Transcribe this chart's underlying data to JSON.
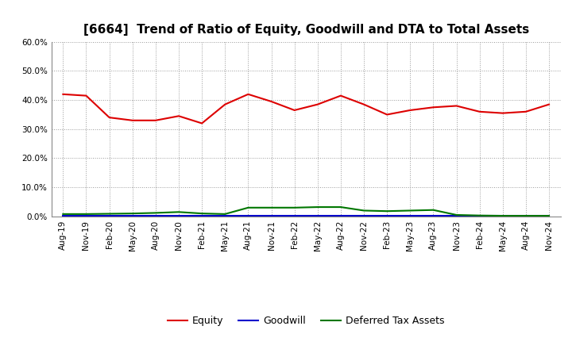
{
  "title": "[6664]  Trend of Ratio of Equity, Goodwill and DTA to Total Assets",
  "x_labels": [
    "Aug-19",
    "Nov-19",
    "Feb-20",
    "May-20",
    "Aug-20",
    "Nov-20",
    "Feb-21",
    "May-21",
    "Aug-21",
    "Nov-21",
    "Feb-22",
    "May-22",
    "Aug-22",
    "Nov-22",
    "Feb-23",
    "May-23",
    "Aug-23",
    "Nov-23",
    "Feb-24",
    "May-24",
    "Aug-24",
    "Nov-24"
  ],
  "equity": [
    42.0,
    41.5,
    34.0,
    33.0,
    33.0,
    34.5,
    32.0,
    38.5,
    42.0,
    39.5,
    36.5,
    38.5,
    41.5,
    38.5,
    35.0,
    36.5,
    37.5,
    38.0,
    36.0,
    35.5,
    36.0,
    38.5
  ],
  "goodwill": [
    0.3,
    0.3,
    0.3,
    0.3,
    0.3,
    0.3,
    0.3,
    0.3,
    0.3,
    0.3,
    0.3,
    0.3,
    0.3,
    0.3,
    0.3,
    0.3,
    0.3,
    0.3,
    0.3,
    0.3,
    0.3,
    0.3
  ],
  "dta": [
    0.8,
    0.8,
    0.9,
    1.0,
    1.2,
    1.5,
    1.0,
    0.8,
    3.0,
    3.0,
    3.0,
    3.2,
    3.2,
    2.0,
    1.8,
    2.0,
    2.2,
    0.5,
    0.3,
    0.2,
    0.2,
    0.2
  ],
  "equity_color": "#dd0000",
  "goodwill_color": "#0000cc",
  "dta_color": "#007700",
  "ylim": [
    0,
    60
  ],
  "yticks": [
    0,
    10,
    20,
    30,
    40,
    50,
    60
  ],
  "background_color": "#ffffff",
  "plot_bg_color": "#ffffff",
  "grid_color": "#999999",
  "title_fontsize": 11,
  "tick_fontsize": 7.5,
  "legend_labels": [
    "Equity",
    "Goodwill",
    "Deferred Tax Assets"
  ]
}
